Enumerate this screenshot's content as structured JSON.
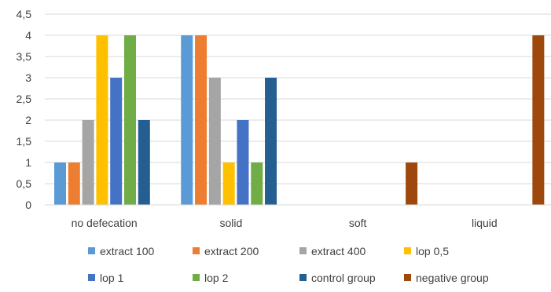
{
  "chart_data": {
    "type": "bar",
    "title": "",
    "xlabel": "",
    "ylabel": "",
    "ylim": [
      0,
      4.5
    ],
    "yticks": [
      "0",
      "0,5",
      "1",
      "1,5",
      "2",
      "2,5",
      "3",
      "3,5",
      "4",
      "4,5"
    ],
    "grid": true,
    "legend_position": "bottom",
    "categories": [
      "no defecation",
      "solid",
      "soft",
      "liquid"
    ],
    "series": [
      {
        "name": "extract 100",
        "color": "#5B9BD5",
        "values": [
          1,
          4,
          0,
          0
        ]
      },
      {
        "name": "extract 200",
        "color": "#ED7D31",
        "values": [
          1,
          4,
          0,
          0
        ]
      },
      {
        "name": "extract 400",
        "color": "#A5A5A5",
        "values": [
          2,
          3,
          0,
          0
        ]
      },
      {
        "name": "lop 0,5",
        "color": "#FFC000",
        "values": [
          4,
          1,
          0,
          0
        ]
      },
      {
        "name": "lop 1",
        "color": "#4472C4",
        "values": [
          3,
          2,
          0,
          0
        ]
      },
      {
        "name": "lop 2",
        "color": "#70AD47",
        "values": [
          4,
          1,
          0,
          0
        ]
      },
      {
        "name": "control group",
        "color": "#255E91",
        "values": [
          2,
          3,
          0,
          0
        ]
      },
      {
        "name": "negative group",
        "color": "#9E480E",
        "values": [
          0,
          0,
          1,
          4
        ]
      }
    ]
  }
}
